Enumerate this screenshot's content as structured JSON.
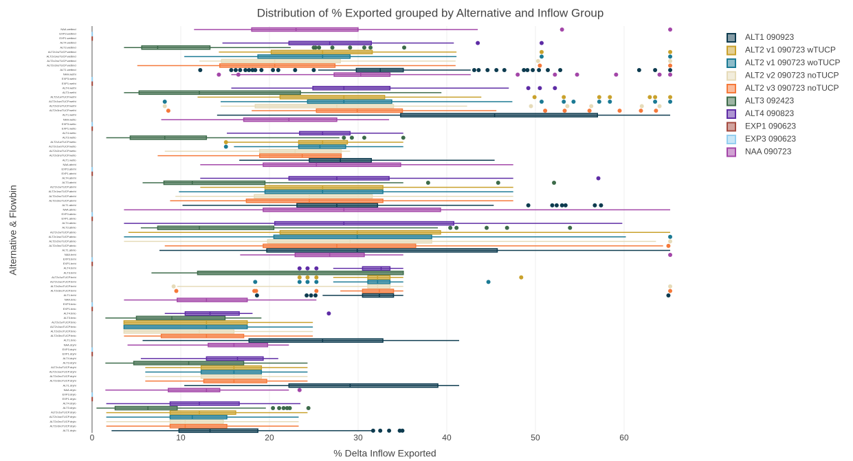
{
  "chart_data": {
    "type": "box",
    "title": "Distribution of % Exported grouped by Alternative and Inflow Group",
    "x_label": "% Delta Inflow Exported",
    "y_label": "Alternative & Flowbin",
    "xlim": [
      -1.5,
      66.5
    ],
    "xticks": [
      0,
      10,
      20,
      30,
      40,
      50,
      60
    ],
    "grid": true,
    "legend": "right",
    "categories": [
      "NAA.wetbnd",
      "EXP3.wetbnd",
      "EXP1.wetbnd",
      "ALT4.wetbnd",
      "ALT3.wetbnd",
      "ALT2v1wTUCP.wetbnd",
      "ALT2v1woTUCP.wetbnd",
      "ALT2v2noTUCP.wetbnd",
      "ALT2v3noTUCP.wetbnd",
      "ALT1.wetbnd",
      "NAA.wethi",
      "EXP3.wethi",
      "EXP1.wethi",
      "ALT4.wethi",
      "ALT3.wethi",
      "ALT2v1wTUCP.wethi",
      "ALT2v1woTUCP.wethi",
      "ALT2v2noTUCP.wethi",
      "ALT2v3noTUCP.wethi",
      "ALT1.wethi",
      "NAA.wetlo",
      "EXP3.wetlo",
      "EXP1.wetlo",
      "ALT4.wetlo",
      "ALT3.wetlo",
      "ALT2v1wTUCP.wetlo",
      "ALT2v1woTUCP.wetlo",
      "ALT2v2noTUCP.wetlo",
      "ALT2v3noTUCP.wetlo",
      "ALT1.wetlo",
      "NAA.abnhi",
      "EXP3.abnhi",
      "EXP1.abnhi",
      "ALT4.abnhi",
      "ALT3.abnhi",
      "ALT2v1wTUCP.abnhi",
      "ALT2v1woTUCP.abnhi",
      "ALT2v2noTUCP.abnhi",
      "ALT2v3noTUCP.abnhi",
      "ALT1.abnhi",
      "NAA.abnlo",
      "EXP3.abnlo",
      "EXP1.abnlo",
      "ALT4.abnlo",
      "ALT3.abnlo",
      "ALT2v1wTUCP.abnlo",
      "ALT2v1woTUCP.abnlo",
      "ALT2v2noTUCP.abnlo",
      "ALT2v3noTUCP.abnlo",
      "ALT1.abnlo",
      "NAA.bnhi",
      "EXP3.bnhi",
      "EXP1.bnhi",
      "ALT4.bnhi",
      "ALT3.bnhi",
      "ALT2v1wTUCP.bnhi",
      "ALT2v1woTUCP.bnhi",
      "ALT2v2noTUCP.bnhi",
      "ALT2v3noTUCP.bnhi",
      "ALT1.bnhi",
      "NAA.bnlo",
      "EXP3.bnlo",
      "EXP1.bnlo",
      "ALT4.bnlo",
      "ALT3.bnlo",
      "ALT2v1wTUCP.bnlo",
      "ALT2v1woTUCP.bnlo",
      "ALT2v2noTUCP.bnlo",
      "ALT2v3noTUCP.bnlo",
      "ALT1.bnlo",
      "NAA.dryhi",
      "EXP3.dryhi",
      "EXP1.dryhi",
      "ALT4.dryhi",
      "ALT3.dryhi",
      "ALT2v1wTUCP.dryhi",
      "ALT2v1woTUCP.dryhi",
      "ALT2v2noTUCP.dryhi",
      "ALT2v3noTUCP.dryhi",
      "ALT1.dryhi",
      "NAA.drylo",
      "EXP3.drylo",
      "EXP1.drylo",
      "ALT4.drylo",
      "ALT3.drylo",
      "ALT2v1wTUCP.drylo",
      "ALT2v1woTUCP.drylo",
      "ALT2v2noTUCP.drylo",
      "ALT2v3noTUCP.drylo",
      "ALT1.drylo"
    ],
    "series": [
      {
        "name": "ALT1 090923",
        "color": "#0d3b4f",
        "boxes": [
          [
            25.5,
            29.8,
            32.5,
            35.1,
            42.7
          ],
          [
            14.1,
            34.8,
            45.4,
            57,
            65.2
          ],
          [
            16.6,
            24.5,
            28,
            31.5,
            45.4
          ],
          [
            10.2,
            23.1,
            27.6,
            32.2,
            45.3
          ],
          [
            7.6,
            19.7,
            29.9,
            45.7,
            65.2
          ],
          [
            26,
            30.5,
            32.4,
            34,
            35.1
          ],
          [
            5.7,
            17.7,
            26,
            32.8,
            41.4
          ],
          [
            10.4,
            22.2,
            29.1,
            39,
            41.4
          ],
          [
            2.2,
            9.8,
            13.3,
            18.7,
            31.5
          ]
        ],
        "outliers": [
          [
            12.2,
            15.7,
            16.2,
            16.7,
            17.3,
            17.7,
            18.1,
            18.4,
            19.1,
            20.4,
            21,
            22.9,
            25,
            43.1,
            43.6,
            44.6,
            45.6,
            46.5,
            48.7,
            49.1,
            49.7,
            50.4,
            51.4,
            52.8,
            61.7,
            63.5,
            65.2
          ],
          [],
          [],
          [
            49.2,
            51.9,
            52.4,
            53,
            53.4,
            56.7,
            57.4
          ],
          [],
          [
            18.6,
            24.2,
            24.7,
            25.2,
            65
          ],
          [],
          [],
          [
            31.7,
            32.5,
            33.5,
            34.7,
            35
          ]
        ]
      },
      {
        "name": "ALT2 v1 090723 wTUCP",
        "color": "#c9a12c",
        "boxes": [
          [
            14.3,
            20.2,
            26,
            31.6,
            41.1
          ],
          [
            11.9,
            21.2,
            28.4,
            33,
            43.9
          ],
          [
            15.2,
            23.3,
            26,
            28.8,
            35.1
          ],
          [
            12.2,
            19.5,
            26,
            32.8,
            47.5
          ],
          [
            4.1,
            21.2,
            29.9,
            39.3,
            65.2
          ],
          [
            27.2,
            31.1,
            32.2,
            33.6,
            35.1
          ],
          [
            3.6,
            3.6,
            12.9,
            17.5,
            24.9
          ],
          [
            6,
            12.3,
            16,
            19.1,
            24.3
          ],
          [
            1.6,
            8.8,
            12.1,
            16.2,
            24.3
          ]
        ],
        "outliers": [
          [
            50.7,
            65.2
          ],
          [
            49.9,
            53.2,
            57.2,
            58.4,
            62.9,
            63.5,
            65.2
          ],
          [
            15.1
          ],
          [],
          [],
          [
            23.4,
            24.3,
            25.3,
            48.4
          ],
          [],
          [],
          []
        ]
      },
      {
        "name": "ALT2 v1 090723 woTUCP",
        "color": "#1b7a94",
        "boxes": [
          [
            10.4,
            18.7,
            26,
            29.1,
            41.1
          ],
          [
            14.5,
            24.3,
            28.4,
            33.8,
            47.4
          ],
          [
            16,
            23.3,
            25.7,
            28.6,
            35.1
          ],
          [
            9.8,
            19.5,
            26,
            32.8,
            47.5
          ],
          [
            3.6,
            20.5,
            29.9,
            38.3,
            60.2
          ],
          [
            27.2,
            31.1,
            32.2,
            33.6,
            35.1
          ],
          [
            3.6,
            3.6,
            12.9,
            17.5,
            24.9
          ],
          [
            6,
            12.3,
            16,
            19.1,
            24.3
          ],
          [
            1.6,
            8.8,
            11.3,
            15.2,
            23.3
          ]
        ],
        "outliers": [
          [
            50.7,
            65.2
          ],
          [
            8.2,
            50.7,
            53.2,
            54.3,
            57.2,
            58.4,
            63.5,
            65.2
          ],
          [
            15.1
          ],
          [],
          [
            65.2
          ],
          [
            18.4,
            23.4,
            24.3,
            25.3,
            44.7
          ],
          [],
          [],
          []
        ]
      },
      {
        "name": "ALT2 v2 090723 noTUCP",
        "color": "#e6dbb9",
        "boxes": [
          [
            12.1,
            14.6,
            20.6,
            28,
            41
          ],
          [
            14.5,
            18.4,
            27.6,
            34,
            42.3
          ],
          [
            8.2,
            18.9,
            22.9,
            28.1,
            29.1
          ],
          [
            9.4,
            18.3,
            24.5,
            31.6,
            47.5
          ],
          [
            3.6,
            19.8,
            29.1,
            38.3,
            63.6
          ],
          [
            9.6,
            31.1,
            32.2,
            33.6,
            35.1
          ],
          [
            3.6,
            3.6,
            12.1,
            16,
            24.9
          ],
          [
            6,
            12.3,
            16,
            19.1,
            24.3
          ],
          [
            1.6,
            8.8,
            10.5,
            14.8,
            23.3
          ]
        ],
        "outliers": [
          [
            50.3,
            65.2
          ],
          [
            8.2,
            49.5,
            53.6,
            56.3,
            62,
            64
          ],
          [],
          [],
          [
            65.2
          ],
          [
            9.2,
            65.2
          ],
          [],
          [],
          []
        ]
      },
      {
        "name": "ALT2 v3 090723 noTUCP",
        "color": "#f5793a",
        "boxes": [
          [
            5.1,
            14.4,
            20.6,
            27.4,
            41
          ],
          [
            18,
            25.3,
            29.9,
            35,
            45.6
          ],
          [
            7.4,
            18.9,
            23.7,
            28.1,
            28.1
          ],
          [
            8.8,
            17.4,
            24.5,
            32.8,
            47.5
          ],
          [
            8.2,
            19.3,
            27.6,
            36.5,
            64.4
          ],
          [
            28,
            30.5,
            32.4,
            34,
            35.1
          ],
          [
            3.6,
            7.8,
            12.9,
            17.1,
            24.9
          ],
          [
            6,
            12.6,
            16,
            19.7,
            24.3
          ],
          [
            1.6,
            8.8,
            10.5,
            15.2,
            23.3
          ]
        ],
        "outliers": [
          [
            50.5,
            65.2
          ],
          [
            8.6,
            51.1,
            53.3,
            56.1,
            59.5,
            61.9,
            63.6
          ],
          [],
          [],
          [
            65
          ],
          [
            9.5,
            18.3,
            18.5,
            25.3,
            65.2
          ],
          [],
          [],
          []
        ]
      },
      {
        "name": "ALT3 092423",
        "color": "#3d6b4a",
        "boxes": [
          [
            3.6,
            5.6,
            7.4,
            13.3,
            22.4
          ],
          [
            3.6,
            5.3,
            12.1,
            23.5,
            39.4
          ],
          [
            1.6,
            4.3,
            8.2,
            12.9,
            27.9
          ],
          [
            5.7,
            8.1,
            11.3,
            19.5,
            35.1
          ],
          [
            5.5,
            7.4,
            12.1,
            20.5,
            39
          ],
          [
            6.7,
            11.9,
            35.1,
            35.1,
            35.1
          ],
          [
            1.5,
            5,
            9,
            15,
            19.1
          ],
          [
            1.5,
            4.7,
            10.9,
            17.1,
            24.3
          ],
          [
            0.5,
            2.6,
            6.3,
            9.6,
            19.6
          ]
        ],
        "outliers": [
          [
            25,
            25.2,
            25.6,
            27.1,
            29.1,
            30.7,
            31.4,
            35.2
          ],
          [],
          [
            28.4,
            29.3,
            30.7,
            35.1
          ],
          [
            37.9,
            45.8,
            52.1
          ],
          [
            40.4,
            41.1,
            44.5,
            46.8,
            53.9
          ],
          [],
          [],
          [],
          [
            20.4,
            21.1,
            21.6,
            22,
            22.3,
            24.4
          ]
        ]
      },
      {
        "name": "ALT4 090823",
        "color": "#5e2ca5",
        "boxes": [
          [
            14.7,
            22.2,
            26.8,
            31.5,
            40.8
          ],
          [
            15.7,
            24.9,
            28.4,
            33.6,
            47
          ],
          [
            15.2,
            23.4,
            26,
            29.1,
            35.1
          ],
          [
            12.2,
            22.2,
            27.6,
            33.5,
            47.5
          ],
          [
            3.6,
            20.6,
            28.4,
            40.8,
            59.8
          ],
          [
            27.2,
            30.5,
            32.6,
            33.6,
            35.1
          ],
          [
            8.2,
            10.5,
            13.3,
            16.6,
            18.1
          ],
          [
            5.5,
            12.9,
            16.4,
            19.3,
            21
          ],
          [
            1.6,
            8.8,
            12.1,
            16.6,
            23.5
          ]
        ],
        "outliers": [
          [
            43.5,
            50.7
          ],
          [
            49.2,
            50.5,
            52.2
          ],
          [],
          [
            57.1
          ],
          [],
          [
            23.4,
            24.3,
            25.3
          ],
          [
            26.7
          ],
          [],
          []
        ]
      },
      {
        "name": "EXP1 090623",
        "color": "#a44a3f",
        "boxes": [
          [
            0,
            0,
            0,
            0,
            0
          ],
          [
            0,
            0,
            0,
            0,
            0
          ],
          [
            0,
            0,
            0,
            0,
            0
          ],
          [
            0,
            0,
            0,
            0,
            0
          ],
          [
            0,
            0,
            0,
            0,
            0
          ],
          [
            0,
            0,
            0,
            0,
            0
          ],
          [
            0,
            0,
            0,
            0,
            0
          ],
          [
            0,
            0,
            0,
            0,
            0
          ],
          [
            0,
            0,
            0,
            0,
            0
          ]
        ],
        "outliers": [
          [],
          [],
          [],
          [],
          [],
          [],
          [],
          [],
          []
        ]
      },
      {
        "name": "EXP3 090623",
        "color": "#94cff0",
        "boxes": [
          [
            0,
            0,
            0,
            0,
            0
          ],
          [
            0,
            0,
            0,
            0,
            0
          ],
          [
            0,
            0,
            0,
            0,
            0
          ],
          [
            0,
            0,
            0,
            0,
            0
          ],
          [
            0,
            0,
            0,
            0,
            0
          ],
          [
            0,
            0,
            0,
            0,
            0
          ],
          [
            0,
            0,
            0,
            0,
            0
          ],
          [
            0,
            0,
            0,
            0,
            0
          ],
          [
            0,
            0,
            0,
            0,
            0
          ]
        ],
        "outliers": [
          [],
          [],
          [],
          [],
          [],
          [],
          [],
          [],
          []
        ]
      },
      {
        "name": "NAA 090723",
        "color": "#a346a8",
        "boxes": [
          [
            11.5,
            18,
            23,
            30,
            43.5
          ],
          [
            15.7,
            27.3,
            30.3,
            33.6,
            42.7
          ],
          [
            7.8,
            17.1,
            22.2,
            27.6,
            33.5
          ],
          [
            12.2,
            19.3,
            25.3,
            34.8,
            47.5
          ],
          [
            3.6,
            19.3,
            28.4,
            39.3,
            65.2
          ],
          [
            16.7,
            22.9,
            26.8,
            30.7,
            35.1
          ],
          [
            3.6,
            9.6,
            12.9,
            17.5,
            25.3
          ],
          [
            4,
            13.1,
            16,
            19.8,
            22.2
          ],
          [
            1.5,
            8.6,
            12.9,
            14.4,
            22.2
          ]
        ],
        "outliers": [
          [
            53,
            65.2
          ],
          [
            14.3,
            16.5,
            48,
            52.2,
            54.7,
            59.1,
            64,
            65.2
          ],
          [],
          [],
          [],
          [
            65.2
          ],
          [],
          [],
          [
            23.4
          ]
        ]
      }
    ]
  }
}
